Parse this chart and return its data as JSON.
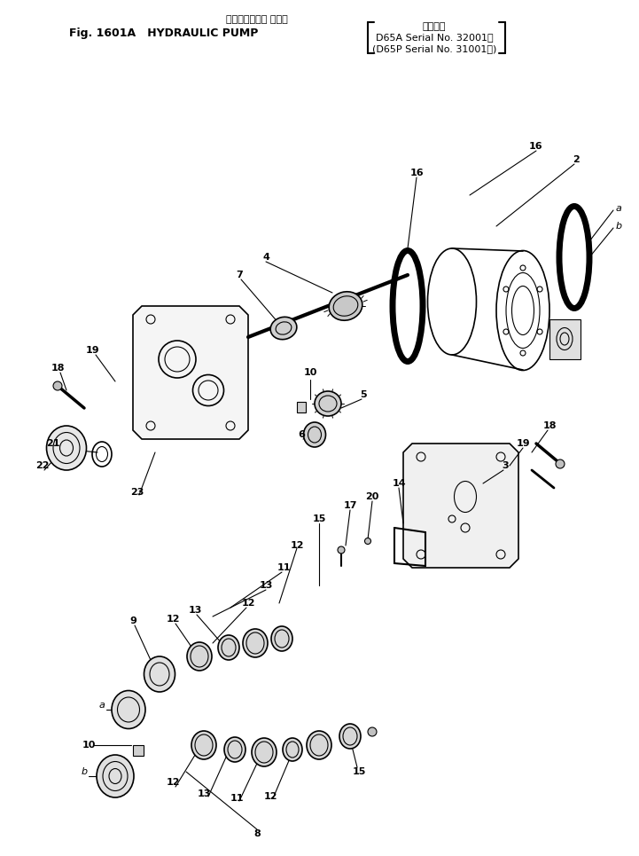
{
  "title_line1": "ハイドロリック ポンプ",
  "title_line2": "Fig. 1601A   HYDRAULIC PUMP",
  "title_line3": "適用号機",
  "title_line4": "D65A Serial No. 32001～",
  "title_line5": "(D65P Serial No. 31001～)",
  "bg_color": "#ffffff",
  "line_color": "#000000",
  "fig_width": 7.21,
  "fig_height": 9.65,
  "dpi": 100
}
